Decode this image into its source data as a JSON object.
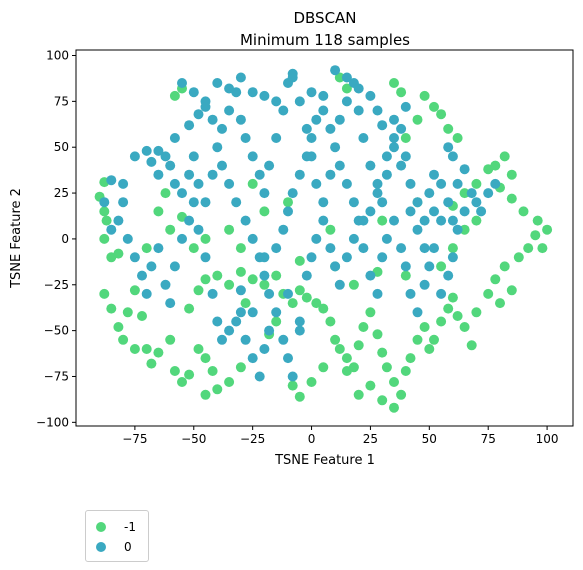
{
  "chart_data": {
    "type": "scatter",
    "title": "DBSCAN",
    "subtitle": "Minimum 118 samples",
    "xlabel": "TSNE Feature 1",
    "ylabel": "TSNE Feature 2",
    "xlim": [
      -100,
      111
    ],
    "ylim": [
      -102,
      103
    ],
    "x_ticks": [
      -75,
      -50,
      -25,
      0,
      25,
      50,
      75,
      100
    ],
    "y_ticks": [
      -100,
      -75,
      -50,
      -25,
      0,
      25,
      50,
      75,
      100
    ],
    "x_tick_labels": [
      "−75",
      "−50",
      "−25",
      "0",
      "25",
      "50",
      "75",
      "100"
    ],
    "y_tick_labels": [
      "−100",
      "−75",
      "−50",
      "−25",
      "0",
      "25",
      "50",
      "75",
      "100"
    ],
    "grid": false,
    "legend_position": "below-left",
    "series": [
      {
        "name": "-1",
        "color": "#52d77c",
        "points": [
          [
            -88,
            31
          ],
          [
            -90,
            23
          ],
          [
            -88,
            15
          ],
          [
            -87,
            10
          ],
          [
            -88,
            0
          ],
          [
            -85,
            -10
          ],
          [
            -88,
            -30
          ],
          [
            -85,
            -38
          ],
          [
            -82,
            -48
          ],
          [
            -80,
            -55
          ],
          [
            -78,
            -40
          ],
          [
            -75,
            -28
          ],
          [
            -72,
            -42
          ],
          [
            -70,
            -60
          ],
          [
            -68,
            -68
          ],
          [
            -65,
            -62
          ],
          [
            -60,
            -55
          ],
          [
            -58,
            -72
          ],
          [
            -55,
            -78
          ],
          [
            -52,
            -74
          ],
          [
            -48,
            -60
          ],
          [
            -45,
            -65
          ],
          [
            -42,
            -72
          ],
          [
            -45,
            -85
          ],
          [
            -40,
            -82
          ],
          [
            -35,
            -78
          ],
          [
            -30,
            -70
          ],
          [
            -52,
            -38
          ],
          [
            -48,
            -28
          ],
          [
            -45,
            -22
          ],
          [
            -40,
            -20
          ],
          [
            -35,
            -25
          ],
          [
            -30,
            -18
          ],
          [
            -25,
            -22
          ],
          [
            -20,
            -25
          ],
          [
            -15,
            -20
          ],
          [
            -12,
            -30
          ],
          [
            -8,
            -35
          ],
          [
            -5,
            -28
          ],
          [
            -2,
            -32
          ],
          [
            2,
            -35
          ],
          [
            5,
            -38
          ],
          [
            8,
            -45
          ],
          [
            10,
            -55
          ],
          [
            12,
            -60
          ],
          [
            15,
            -65
          ],
          [
            18,
            -70
          ],
          [
            20,
            -58
          ],
          [
            22,
            -48
          ],
          [
            25,
            -40
          ],
          [
            28,
            -52
          ],
          [
            30,
            -62
          ],
          [
            32,
            -70
          ],
          [
            35,
            -78
          ],
          [
            38,
            -85
          ],
          [
            40,
            -72
          ],
          [
            42,
            -65
          ],
          [
            45,
            -55
          ],
          [
            48,
            -48
          ],
          [
            50,
            -60
          ],
          [
            52,
            -55
          ],
          [
            55,
            -45
          ],
          [
            58,
            -38
          ],
          [
            60,
            -32
          ],
          [
            62,
            -42
          ],
          [
            65,
            -48
          ],
          [
            70,
            -40
          ],
          [
            75,
            -30
          ],
          [
            78,
            -22
          ],
          [
            82,
            -15
          ],
          [
            85,
            -28
          ],
          [
            80,
            -35
          ],
          [
            88,
            -10
          ],
          [
            92,
            -5
          ],
          [
            95,
            2
          ],
          [
            98,
            -5
          ],
          [
            100,
            5
          ],
          [
            96,
            10
          ],
          [
            90,
            15
          ],
          [
            85,
            22
          ],
          [
            80,
            28
          ],
          [
            78,
            40
          ],
          [
            75,
            38
          ],
          [
            70,
            30
          ],
          [
            65,
            25
          ],
          [
            60,
            18
          ],
          [
            62,
            55
          ],
          [
            58,
            60
          ],
          [
            55,
            68
          ],
          [
            52,
            72
          ],
          [
            48,
            78
          ],
          [
            45,
            65
          ],
          [
            40,
            55
          ],
          [
            38,
            80
          ],
          [
            35,
            85
          ],
          [
            12,
            88
          ],
          [
            15,
            82
          ],
          [
            -5,
            -12
          ],
          [
            -8,
            -80
          ],
          [
            -5,
            -86
          ],
          [
            0,
            -78
          ],
          [
            5,
            -70
          ],
          [
            -58,
            78
          ],
          [
            -55,
            82
          ],
          [
            -25,
            30
          ],
          [
            -20,
            15
          ],
          [
            -10,
            20
          ],
          [
            8,
            5
          ],
          [
            -28,
            -35
          ],
          [
            -15,
            -45
          ],
          [
            -55,
            12
          ],
          [
            -60,
            5
          ],
          [
            -50,
            -5
          ],
          [
            30,
            10
          ],
          [
            40,
            -20
          ],
          [
            55,
            -15
          ],
          [
            60,
            -5
          ],
          [
            65,
            5
          ],
          [
            70,
            10
          ],
          [
            45,
            20
          ],
          [
            28,
            -18
          ],
          [
            18,
            -25
          ],
          [
            -82,
            -8
          ],
          [
            -75,
            -60
          ],
          [
            25,
            -80
          ],
          [
            30,
            -88
          ],
          [
            35,
            -92
          ],
          [
            15,
            -72
          ],
          [
            20,
            -85
          ],
          [
            -18,
            -52
          ],
          [
            10,
            -15
          ],
          [
            -30,
            -5
          ],
          [
            -35,
            5
          ],
          [
            -45,
            0
          ],
          [
            -70,
            -5
          ],
          [
            -65,
            15
          ],
          [
            -62,
            25
          ],
          [
            82,
            45
          ],
          [
            85,
            35
          ],
          [
            68,
            -58
          ]
        ]
      },
      {
        "name": "0",
        "color": "#3aa9c1",
        "points": [
          [
            -85,
            32
          ],
          [
            -80,
            30
          ],
          [
            -75,
            45
          ],
          [
            -70,
            48
          ],
          [
            -68,
            42
          ],
          [
            -65,
            35
          ],
          [
            -62,
            45
          ],
          [
            -60,
            40
          ],
          [
            -58,
            30
          ],
          [
            -55,
            25
          ],
          [
            -52,
            35
          ],
          [
            -50,
            45
          ],
          [
            -48,
            30
          ],
          [
            -45,
            20
          ],
          [
            -42,
            35
          ],
          [
            -40,
            50
          ],
          [
            -38,
            60
          ],
          [
            -35,
            70
          ],
          [
            -32,
            80
          ],
          [
            -30,
            65
          ],
          [
            -28,
            55
          ],
          [
            -25,
            45
          ],
          [
            -22,
            35
          ],
          [
            -20,
            25
          ],
          [
            -18,
            40
          ],
          [
            -15,
            55
          ],
          [
            -12,
            70
          ],
          [
            -10,
            85
          ],
          [
            -8,
            90
          ],
          [
            -5,
            75
          ],
          [
            -2,
            60
          ],
          [
            0,
            45
          ],
          [
            2,
            30
          ],
          [
            5,
            20
          ],
          [
            8,
            35
          ],
          [
            10,
            50
          ],
          [
            12,
            65
          ],
          [
            15,
            75
          ],
          [
            18,
            85
          ],
          [
            20,
            70
          ],
          [
            22,
            55
          ],
          [
            25,
            40
          ],
          [
            28,
            30
          ],
          [
            30,
            20
          ],
          [
            32,
            35
          ],
          [
            35,
            50
          ],
          [
            38,
            60
          ],
          [
            40,
            45
          ],
          [
            42,
            30
          ],
          [
            45,
            20
          ],
          [
            48,
            10
          ],
          [
            50,
            25
          ],
          [
            52,
            35
          ],
          [
            55,
            30
          ],
          [
            58,
            20
          ],
          [
            60,
            10
          ],
          [
            62,
            5
          ],
          [
            65,
            15
          ],
          [
            70,
            20
          ],
          [
            75,
            25
          ],
          [
            78,
            30
          ],
          [
            -80,
            20
          ],
          [
            -82,
            10
          ],
          [
            -78,
            0
          ],
          [
            -75,
            -10
          ],
          [
            -72,
            -20
          ],
          [
            -70,
            -30
          ],
          [
            -68,
            -15
          ],
          [
            -65,
            -5
          ],
          [
            -62,
            -25
          ],
          [
            -60,
            -35
          ],
          [
            -58,
            -15
          ],
          [
            -55,
            0
          ],
          [
            -52,
            10
          ],
          [
            -50,
            20
          ],
          [
            -48,
            5
          ],
          [
            -45,
            -10
          ],
          [
            -42,
            -30
          ],
          [
            -40,
            -45
          ],
          [
            -38,
            -55
          ],
          [
            -35,
            -50
          ],
          [
            -32,
            -45
          ],
          [
            -30,
            -40
          ],
          [
            -28,
            -55
          ],
          [
            -25,
            -65
          ],
          [
            -22,
            -75
          ],
          [
            -20,
            -60
          ],
          [
            -18,
            -50
          ],
          [
            -15,
            -40
          ],
          [
            -12,
            -55
          ],
          [
            -10,
            -65
          ],
          [
            -8,
            -75
          ],
          [
            -5,
            -50
          ],
          [
            -2,
            -20
          ],
          [
            0,
            -10
          ],
          [
            2,
            0
          ],
          [
            5,
            10
          ],
          [
            8,
            -5
          ],
          [
            10,
            -15
          ],
          [
            12,
            -25
          ],
          [
            15,
            -10
          ],
          [
            18,
            0
          ],
          [
            20,
            10
          ],
          [
            22,
            -5
          ],
          [
            25,
            -20
          ],
          [
            28,
            -30
          ],
          [
            30,
            -10
          ],
          [
            32,
            0
          ],
          [
            35,
            10
          ],
          [
            38,
            -5
          ],
          [
            40,
            -15
          ],
          [
            42,
            -30
          ],
          [
            45,
            -40
          ],
          [
            48,
            -25
          ],
          [
            50,
            -15
          ],
          [
            52,
            -5
          ],
          [
            55,
            -30
          ],
          [
            58,
            -20
          ],
          [
            60,
            -10
          ],
          [
            -55,
            85
          ],
          [
            -50,
            80
          ],
          [
            -45,
            75
          ],
          [
            -40,
            85
          ],
          [
            -35,
            82
          ],
          [
            -30,
            88
          ],
          [
            -25,
            80
          ],
          [
            -20,
            78
          ],
          [
            -15,
            75
          ],
          [
            -8,
            88
          ],
          [
            0,
            80
          ],
          [
            5,
            78
          ],
          [
            10,
            92
          ],
          [
            15,
            88
          ],
          [
            20,
            82
          ],
          [
            25,
            78
          ],
          [
            28,
            70
          ],
          [
            30,
            62
          ],
          [
            35,
            65
          ],
          [
            40,
            72
          ],
          [
            -65,
            48
          ],
          [
            -58,
            55
          ],
          [
            -52,
            62
          ],
          [
            -48,
            68
          ],
          [
            -45,
            72
          ],
          [
            -42,
            65
          ],
          [
            -38,
            40
          ],
          [
            -35,
            30
          ],
          [
            -32,
            20
          ],
          [
            -28,
            10
          ],
          [
            -25,
            0
          ],
          [
            -22,
            -10
          ],
          [
            -20,
            -20
          ],
          [
            -18,
            -30
          ],
          [
            -15,
            -5
          ],
          [
            -12,
            5
          ],
          [
            -10,
            15
          ],
          [
            -8,
            25
          ],
          [
            -5,
            35
          ],
          [
            -2,
            45
          ],
          [
            0,
            55
          ],
          [
            2,
            65
          ],
          [
            5,
            70
          ],
          [
            8,
            60
          ],
          [
            12,
            40
          ],
          [
            15,
            30
          ],
          [
            18,
            20
          ],
          [
            22,
            10
          ],
          [
            25,
            15
          ],
          [
            28,
            25
          ],
          [
            32,
            45
          ],
          [
            35,
            55
          ],
          [
            38,
            40
          ],
          [
            42,
            15
          ],
          [
            45,
            5
          ],
          [
            48,
            -5
          ],
          [
            52,
            15
          ],
          [
            55,
            10
          ],
          [
            62,
            30
          ],
          [
            65,
            38
          ],
          [
            68,
            25
          ],
          [
            72,
            15
          ],
          [
            60,
            45
          ],
          [
            58,
            50
          ],
          [
            -88,
            20
          ],
          [
            -85,
            5
          ],
          [
            -30,
            -28
          ],
          [
            -25,
            -40
          ],
          [
            -20,
            -10
          ],
          [
            -10,
            -30
          ],
          [
            -5,
            -45
          ]
        ]
      }
    ]
  }
}
